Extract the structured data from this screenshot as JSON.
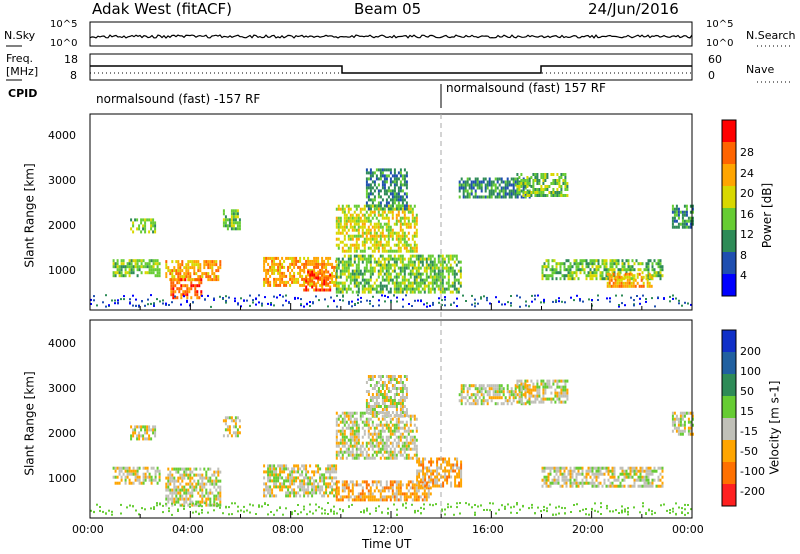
{
  "header": {
    "radar": "Adak West (fitACF)",
    "beam": "Beam 05",
    "date": "24/Jun/2016"
  },
  "top_panels": {
    "nsky": {
      "left_label": "N.Sky",
      "left_ticks": [
        "10^5",
        "10^0"
      ],
      "right_label": "N.Search",
      "right_ticks": [
        "10^5",
        "10^0"
      ]
    },
    "freq": {
      "left_label_1": "Freq.",
      "left_label_2": "[MHz]",
      "left_ticks": [
        "18",
        "8"
      ],
      "right_label": "Nave",
      "right_ticks": [
        "60",
        "0"
      ]
    },
    "cpid": {
      "label": "CPID",
      "segments": [
        {
          "start": "00:00",
          "end": "14:00",
          "text": "normalsound (fast) -157 RF"
        },
        {
          "start": "14:00",
          "end": "24:00",
          "text": "normalsound (fast) 157 RF"
        }
      ]
    }
  },
  "chart_data": [
    {
      "type": "heatmap",
      "panel": "power",
      "ylabel": "Slant Range [km]",
      "yticks": [
        "1000",
        "2000",
        "3000",
        "4000"
      ],
      "ylim": [
        180,
        4500
      ],
      "xlim_hours": [
        0,
        24
      ],
      "colorbar_label": "Power [dB]",
      "colorbar_ticks": [
        "4",
        "8",
        "12",
        "16",
        "20",
        "24",
        "28"
      ],
      "colorbar_colors": [
        "#0000ff",
        "#1f4fb0",
        "#2e8b57",
        "#66cc33",
        "#d8d800",
        "#ffa500",
        "#ff6400",
        "#ff0000"
      ],
      "regions": [
        {
          "t0": 0.9,
          "t1": 2.8,
          "r0": 950,
          "r1": 1300,
          "level": 3
        },
        {
          "t0": 1.6,
          "t1": 2.6,
          "r0": 1900,
          "r1": 2200,
          "level": 3
        },
        {
          "t0": 3.0,
          "t1": 5.2,
          "r0": 850,
          "r1": 1280,
          "level": 5
        },
        {
          "t0": 3.2,
          "t1": 4.4,
          "r0": 450,
          "r1": 880,
          "level": 6
        },
        {
          "t0": 5.3,
          "t1": 6.0,
          "r0": 2000,
          "r1": 2400,
          "level": 3
        },
        {
          "t0": 6.9,
          "t1": 9.8,
          "r0": 700,
          "r1": 1350,
          "level": 5
        },
        {
          "t0": 8.5,
          "t1": 9.6,
          "r0": 650,
          "r1": 1050,
          "level": 6
        },
        {
          "t0": 9.8,
          "t1": 14.8,
          "r0": 600,
          "r1": 1400,
          "level": 3
        },
        {
          "t0": 9.8,
          "t1": 13.0,
          "r0": 1500,
          "r1": 2500,
          "level": 4
        },
        {
          "t0": 11.0,
          "t1": 12.6,
          "r0": 2400,
          "r1": 3300,
          "level": 2
        },
        {
          "t0": 14.7,
          "t1": 17.5,
          "r0": 2700,
          "r1": 3100,
          "level": 2
        },
        {
          "t0": 17.0,
          "t1": 19.0,
          "r0": 2700,
          "r1": 3200,
          "level": 3
        },
        {
          "t0": 18.0,
          "t1": 22.8,
          "r0": 850,
          "r1": 1300,
          "level": 3
        },
        {
          "t0": 20.6,
          "t1": 22.4,
          "r0": 700,
          "r1": 1000,
          "level": 5
        },
        {
          "t0": 23.2,
          "t1": 24.0,
          "r0": 2000,
          "r1": 2500,
          "level": 2
        }
      ]
    },
    {
      "type": "heatmap",
      "panel": "velocity",
      "ylabel": "Slant Range [km]",
      "yticks": [
        "1000",
        "2000",
        "3000",
        "4000"
      ],
      "ylim": [
        180,
        4500
      ],
      "xlabel": "Time UT",
      "xticks": [
        "00:00",
        "04:00",
        "08:00",
        "12:00",
        "16:00",
        "20:00",
        "00:00"
      ],
      "xlim_hours": [
        0,
        24
      ],
      "colorbar_label": "Velocity [m s-1]",
      "colorbar_ticks": [
        "200",
        "100",
        "50",
        "15",
        "-15",
        "-50",
        "-100",
        "-200"
      ],
      "colorbar_colors": [
        "#1030c8",
        "#2060a0",
        "#2e8b57",
        "#66cc33",
        "#c0c0b8",
        "#ffa500",
        "#ff7000",
        "#ff2020"
      ],
      "regions": [
        {
          "t0": 0.9,
          "t1": 2.8,
          "r0": 950,
          "r1": 1300,
          "level": 4
        },
        {
          "t0": 1.6,
          "t1": 2.6,
          "r0": 1900,
          "r1": 2200,
          "level": 4
        },
        {
          "t0": 3.0,
          "t1": 5.2,
          "r0": 450,
          "r1": 1280,
          "level": 4
        },
        {
          "t0": 5.3,
          "t1": 6.0,
          "r0": 2000,
          "r1": 2400,
          "level": 4
        },
        {
          "t0": 6.9,
          "t1": 9.8,
          "r0": 650,
          "r1": 1350,
          "level": 4
        },
        {
          "t0": 9.8,
          "t1": 13.6,
          "r0": 600,
          "r1": 1000,
          "level": 5
        },
        {
          "t0": 13.0,
          "t1": 14.8,
          "r0": 900,
          "r1": 1500,
          "level": 5
        },
        {
          "t0": 9.8,
          "t1": 13.0,
          "r0": 1500,
          "r1": 2500,
          "level": 4
        },
        {
          "t0": 11.0,
          "t1": 12.6,
          "r0": 2400,
          "r1": 3300,
          "level": 4
        },
        {
          "t0": 14.7,
          "t1": 17.5,
          "r0": 2700,
          "r1": 3100,
          "level": 4
        },
        {
          "t0": 17.0,
          "t1": 19.0,
          "r0": 2700,
          "r1": 3200,
          "level": 4
        },
        {
          "t0": 18.0,
          "t1": 22.8,
          "r0": 850,
          "r1": 1300,
          "level": 4
        },
        {
          "t0": 23.2,
          "t1": 24.0,
          "r0": 2000,
          "r1": 2500,
          "level": 4
        }
      ]
    }
  ]
}
